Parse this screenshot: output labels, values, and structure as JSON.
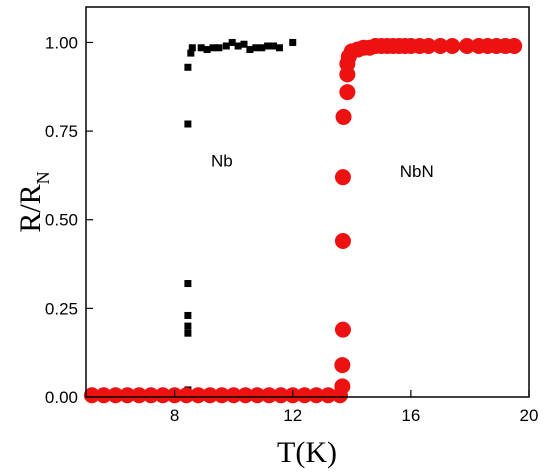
{
  "chart_data": {
    "type": "scatter",
    "title": "",
    "xlabel": "T(K)",
    "ylabel_main": "R/R",
    "ylabel_sub": "N",
    "xlim": [
      5,
      20
    ],
    "ylim": [
      0,
      1.1
    ],
    "x_ticks": [
      8,
      12,
      16,
      20
    ],
    "x_tick_labels": [
      "8",
      "12",
      "16",
      "20"
    ],
    "y_ticks": [
      0,
      0.25,
      0.5,
      0.75,
      1.0
    ],
    "y_tick_labels": [
      "0.00",
      "0.25",
      "0.50",
      "0.75",
      "1.00"
    ],
    "grid": false,
    "annotations": [
      {
        "text": "Nb",
        "x": 9.6,
        "y": 0.65
      },
      {
        "text": "NbN",
        "x": 16.2,
        "y": 0.62
      }
    ],
    "series": [
      {
        "marker": "square",
        "color": "#000000",
        "points": [
          [
            6.0,
            0.01
          ],
          [
            8.45,
            0.02
          ],
          [
            8.45,
            0.18
          ],
          [
            8.45,
            0.2
          ],
          [
            8.45,
            0.23
          ],
          [
            8.45,
            0.32
          ],
          [
            8.45,
            0.77
          ],
          [
            8.45,
            0.93
          ],
          [
            8.55,
            0.97
          ],
          [
            8.6,
            0.985
          ],
          [
            8.9,
            0.985
          ],
          [
            9.1,
            0.98
          ],
          [
            9.3,
            0.985
          ],
          [
            9.5,
            0.985
          ],
          [
            9.75,
            0.99
          ],
          [
            9.95,
            1.0
          ],
          [
            10.15,
            0.99
          ],
          [
            10.35,
            0.995
          ],
          [
            10.55,
            0.98
          ],
          [
            10.75,
            0.985
          ],
          [
            10.95,
            0.985
          ],
          [
            11.15,
            0.99
          ],
          [
            11.35,
            0.99
          ],
          [
            11.55,
            0.985
          ],
          [
            12.0,
            1.0
          ]
        ]
      },
      {
        "marker": "circle",
        "color": "#ee1111",
        "points": [
          [
            5.2,
            0.005
          ],
          [
            5.6,
            0.005
          ],
          [
            6.0,
            0.005
          ],
          [
            6.4,
            0.005
          ],
          [
            6.8,
            0.005
          ],
          [
            7.2,
            0.005
          ],
          [
            7.6,
            0.005
          ],
          [
            8.0,
            0.005
          ],
          [
            8.4,
            0.005
          ],
          [
            8.8,
            0.005
          ],
          [
            9.2,
            0.005
          ],
          [
            9.6,
            0.005
          ],
          [
            10.0,
            0.005
          ],
          [
            10.4,
            0.005
          ],
          [
            10.8,
            0.005
          ],
          [
            11.2,
            0.005
          ],
          [
            11.6,
            0.005
          ],
          [
            12.0,
            0.005
          ],
          [
            12.4,
            0.005
          ],
          [
            12.8,
            0.005
          ],
          [
            13.2,
            0.005
          ],
          [
            13.6,
            0.005
          ],
          [
            13.68,
            0.03
          ],
          [
            13.68,
            0.09
          ],
          [
            13.7,
            0.19
          ],
          [
            13.7,
            0.44
          ],
          [
            13.7,
            0.62
          ],
          [
            13.72,
            0.79
          ],
          [
            13.85,
            0.86
          ],
          [
            13.85,
            0.91
          ],
          [
            13.85,
            0.94
          ],
          [
            13.9,
            0.96
          ],
          [
            14.0,
            0.975
          ],
          [
            14.2,
            0.98
          ],
          [
            14.4,
            0.985
          ],
          [
            14.6,
            0.985
          ],
          [
            14.8,
            0.99
          ],
          [
            15.0,
            0.99
          ],
          [
            15.2,
            0.99
          ],
          [
            15.4,
            0.99
          ],
          [
            15.6,
            0.99
          ],
          [
            15.8,
            0.99
          ],
          [
            16.0,
            0.99
          ],
          [
            16.3,
            0.99
          ],
          [
            16.6,
            0.99
          ],
          [
            17.0,
            0.99
          ],
          [
            17.4,
            0.99
          ],
          [
            17.9,
            0.99
          ],
          [
            18.3,
            0.99
          ],
          [
            18.6,
            0.99
          ],
          [
            18.9,
            0.99
          ],
          [
            19.2,
            0.99
          ],
          [
            19.5,
            0.99
          ]
        ]
      }
    ]
  }
}
